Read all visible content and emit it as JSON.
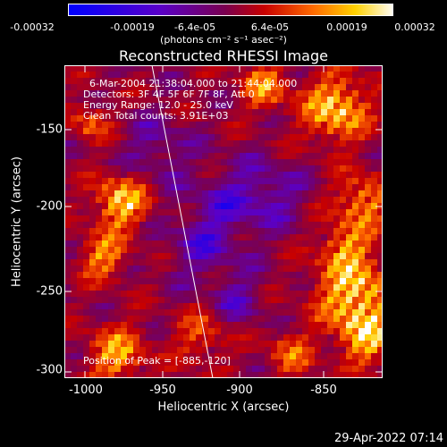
{
  "colorbar": {
    "ticks": [
      "-0.00032",
      "-0.00019",
      "-6.4e-05",
      "6.4e-05",
      "0.00019",
      "0.00032"
    ],
    "units": "(photons cm⁻² s⁻¹ asec⁻²)",
    "colors": [
      "#0000ff",
      "#5a00c8",
      "#7a0050",
      "#c80000",
      "#ff6a00",
      "#ffd200",
      "#ffffff"
    ]
  },
  "title": "Reconstructed RHESSI Image",
  "info_lines": [
    "6-Mar-2004 21:38:04.000 to 21:44:04.000",
    "Detectors: 3F 4F 5F 6F 7F 8F, Att 0",
    "Energy Range: 12.0 - 25.0 keV",
    "Clean     Total counts: 3.91E+03"
  ],
  "peak_label": "Position of Peak = [-885,-120]",
  "y_axis": {
    "label": "Heliocentric Y (arcsec)",
    "ticks": [
      "-150",
      "-200",
      "-250",
      "-300"
    ]
  },
  "x_axis": {
    "label": "Heliocentric X (arcsec)",
    "ticks": [
      "-1000",
      "-950",
      "-900",
      "-850"
    ]
  },
  "timestamp": "29-Apr-2022 07:14"
}
